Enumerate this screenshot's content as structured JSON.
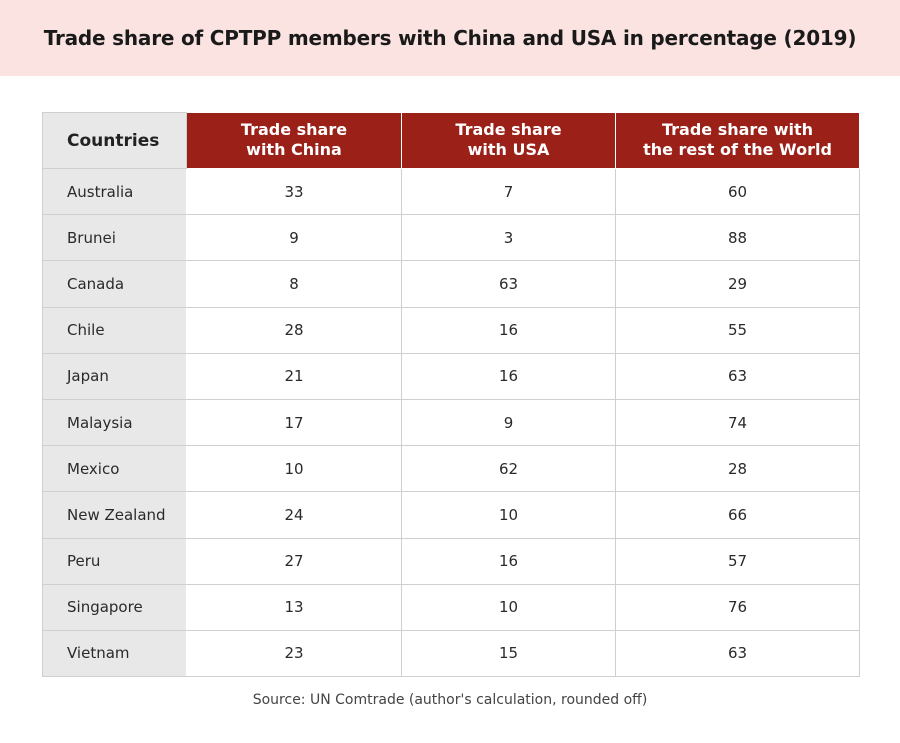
{
  "title": "Trade share of CPTPP members with China and USA in percentage (2019)",
  "source": "Source: UN Comtrade (author's calculation, rounded off)",
  "colors": {
    "title_band": "#fbe3e1",
    "header_fill": "#9b2017",
    "country_fill": "#e8e8e8"
  },
  "chart_data": {
    "type": "table",
    "title": "Trade share of CPTPP members with China and USA in percentage (2019)",
    "columns": [
      {
        "key": "country",
        "lines": [
          "Countries"
        ]
      },
      {
        "key": "china",
        "lines": [
          "Trade share",
          "with China"
        ]
      },
      {
        "key": "usa",
        "lines": [
          "Trade share",
          "with USA"
        ]
      },
      {
        "key": "rest",
        "lines": [
          "Trade share with",
          "the rest of the World"
        ]
      }
    ],
    "rows": [
      {
        "country": "Australia",
        "china": 33,
        "usa": 7,
        "rest": 60
      },
      {
        "country": "Brunei",
        "china": 9,
        "usa": 3,
        "rest": 88
      },
      {
        "country": "Canada",
        "china": 8,
        "usa": 63,
        "rest": 29
      },
      {
        "country": "Chile",
        "china": 28,
        "usa": 16,
        "rest": 55
      },
      {
        "country": "Japan",
        "china": 21,
        "usa": 16,
        "rest": 63
      },
      {
        "country": "Malaysia",
        "china": 17,
        "usa": 9,
        "rest": 74
      },
      {
        "country": "Mexico",
        "china": 10,
        "usa": 62,
        "rest": 28
      },
      {
        "country": "New Zealand",
        "china": 24,
        "usa": 10,
        "rest": 66
      },
      {
        "country": "Peru",
        "china": 27,
        "usa": 16,
        "rest": 57
      },
      {
        "country": "Singapore",
        "china": 13,
        "usa": 10,
        "rest": 76
      },
      {
        "country": "Vietnam",
        "china": 23,
        "usa": 15,
        "rest": 63
      }
    ],
    "source": "Source: UN Comtrade (author's calculation, rounded off)"
  }
}
